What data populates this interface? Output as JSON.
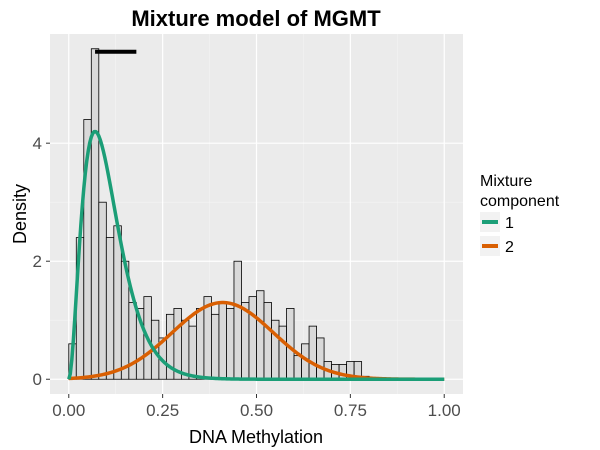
{
  "chart_data": {
    "type": "histogram+line",
    "title": "Mixture model of MGMT",
    "xlabel": "DNA Methylation",
    "ylabel": "Density",
    "xlim": [
      -0.05,
      1.05
    ],
    "ylim": [
      -0.25,
      5.85
    ],
    "x_ticks": [
      0.0,
      0.25,
      0.5,
      0.75,
      1.0
    ],
    "x_tick_labels": [
      "0.00",
      "0.25",
      "0.50",
      "0.75",
      "1.00"
    ],
    "y_ticks": [
      0,
      2,
      4
    ],
    "y_tick_labels": [
      "0",
      "2",
      "4"
    ],
    "histogram": {
      "bin_width": 0.02,
      "bin_starts": [
        0.0,
        0.02,
        0.04,
        0.06,
        0.08,
        0.1,
        0.12,
        0.14,
        0.16,
        0.18,
        0.2,
        0.22,
        0.24,
        0.26,
        0.28,
        0.3,
        0.32,
        0.34,
        0.36,
        0.38,
        0.4,
        0.42,
        0.44,
        0.46,
        0.48,
        0.5,
        0.52,
        0.54,
        0.56,
        0.58,
        0.6,
        0.62,
        0.64,
        0.66,
        0.68,
        0.7,
        0.72,
        0.74,
        0.76,
        0.78
      ],
      "densities": [
        0.6,
        2.4,
        4.4,
        5.6,
        3.0,
        2.4,
        2.6,
        2.0,
        1.3,
        1.2,
        1.4,
        1.0,
        0.7,
        1.1,
        1.2,
        1.0,
        0.9,
        1.2,
        1.4,
        1.1,
        1.3,
        1.2,
        2.0,
        1.3,
        1.4,
        1.5,
        1.3,
        1.0,
        0.9,
        1.2,
        0.4,
        0.6,
        0.9,
        0.7,
        0.3,
        0.25,
        0.25,
        0.3,
        0.3,
        0.05
      ]
    },
    "rug_segment": {
      "x": [
        0.07,
        0.18
      ],
      "y": 5.55
    },
    "series": [
      {
        "name": "1",
        "color": "#1b9e77",
        "distribution": "beta-like",
        "mode": 0.07,
        "peak_density": 4.2
      },
      {
        "name": "2",
        "color": "#d95f02",
        "distribution": "gaussian",
        "mean": 0.41,
        "sd": 0.135,
        "peak_density": 1.3
      }
    ],
    "legend": {
      "title_line1": "Mixture",
      "title_line2": "component",
      "position": "right",
      "entries": [
        "1",
        "2"
      ]
    }
  }
}
